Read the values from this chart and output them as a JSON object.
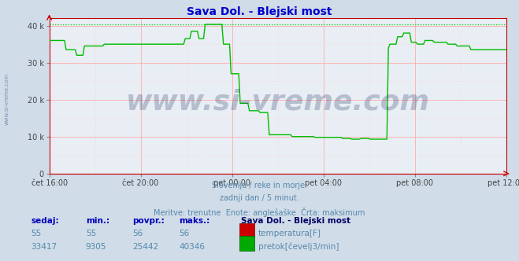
{
  "title": "Sava Dol. - Blejski most",
  "title_color": "#0000cc",
  "bg_color": "#d0dce8",
  "plot_bg_color": "#e8eef4",
  "grid_color_v": "#ffaaaa",
  "grid_color_h": "#ffaaaa",
  "grid_color_minor_v": "#ffd0d0",
  "grid_color_minor_h": "#ffd0d0",
  "xticklabels": [
    "čet 16:00",
    "čet 20:00",
    "pet 00:00",
    "pet 04:00",
    "pet 08:00",
    "pet 12:00"
  ],
  "yticks": [
    0,
    10000,
    20000,
    30000,
    40000
  ],
  "yticklabels": [
    "0",
    "10 k",
    "20 k",
    "30 k",
    "40 k"
  ],
  "ylim": [
    0,
    42000
  ],
  "watermark": "www.si-vreme.com",
  "watermark_color": "#1a3060",
  "watermark_alpha": 0.25,
  "subtitle1": "Slovenija / reke in morje.",
  "subtitle2": "zadnji dan / 5 minut.",
  "subtitle3": "Meritve: trenutne  Enote: anglešaške  Črta: maksimum",
  "subtitle_color": "#5588aa",
  "table_header_color": "#0000bb",
  "table_data_color": "#5588aa",
  "table_station": "Sava Dol. - Blejski most",
  "table_station_color": "#000066",
  "temp_color": "#cc0000",
  "flow_color": "#00aa00",
  "temp_sedaj": 55,
  "temp_min": 55,
  "temp_povpr": 56,
  "temp_maks": 56,
  "flow_sedaj": 33417,
  "flow_min": 9305,
  "flow_povpr": 25442,
  "flow_maks": 40346,
  "dotted_max_color": "#00cc00",
  "dotted_max_value": 40346,
  "flow_line_color": "#00bb00",
  "temp_line_color": "#dd0000",
  "axis_color": "#cc0000",
  "watermark_font_size": 26,
  "side_watermark": "www.si-vreme.com",
  "side_watermark_color": "#6688aa",
  "n_points": 300,
  "flow_data": [
    [
      0.0,
      0.035,
      36000
    ],
    [
      0.035,
      0.06,
      33500
    ],
    [
      0.06,
      0.075,
      32000
    ],
    [
      0.075,
      0.12,
      34500
    ],
    [
      0.12,
      0.145,
      35000
    ],
    [
      0.145,
      0.295,
      35000
    ],
    [
      0.295,
      0.31,
      36500
    ],
    [
      0.31,
      0.325,
      38500
    ],
    [
      0.325,
      0.34,
      36500
    ],
    [
      0.34,
      0.36,
      40346
    ],
    [
      0.36,
      0.38,
      40346
    ],
    [
      0.38,
      0.395,
      35000
    ],
    [
      0.395,
      0.415,
      27000
    ],
    [
      0.415,
      0.435,
      19000
    ],
    [
      0.435,
      0.46,
      17000
    ],
    [
      0.46,
      0.48,
      16500
    ],
    [
      0.48,
      0.53,
      10500
    ],
    [
      0.53,
      0.58,
      10000
    ],
    [
      0.58,
      0.64,
      9800
    ],
    [
      0.64,
      0.66,
      9500
    ],
    [
      0.66,
      0.68,
      9305
    ],
    [
      0.68,
      0.7,
      9500
    ],
    [
      0.7,
      0.73,
      9305
    ],
    [
      0.73,
      0.74,
      9305
    ],
    [
      0.74,
      0.745,
      34000
    ],
    [
      0.745,
      0.76,
      35000
    ],
    [
      0.76,
      0.775,
      37000
    ],
    [
      0.775,
      0.79,
      38000
    ],
    [
      0.79,
      0.805,
      35500
    ],
    [
      0.805,
      0.82,
      35000
    ],
    [
      0.82,
      0.84,
      36000
    ],
    [
      0.84,
      0.87,
      35500
    ],
    [
      0.87,
      0.89,
      35000
    ],
    [
      0.89,
      0.92,
      34500
    ],
    [
      0.92,
      1.0,
      33500
    ]
  ]
}
